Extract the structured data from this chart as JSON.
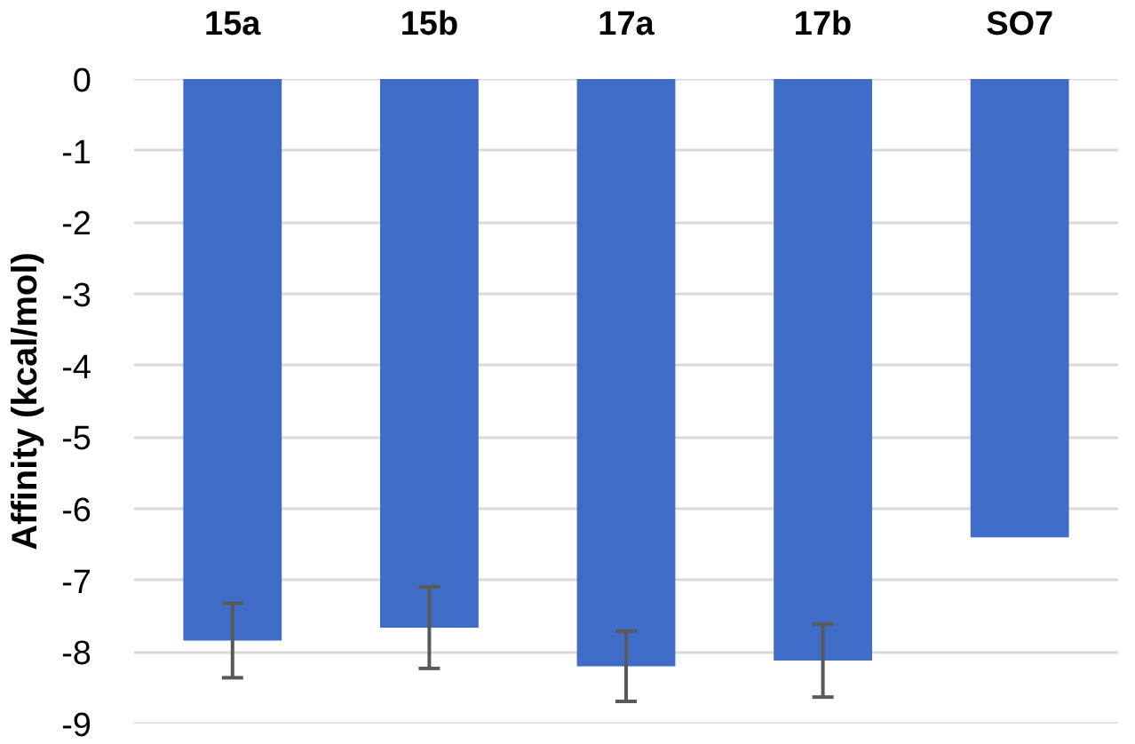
{
  "chart_data": {
    "type": "bar",
    "ylabel": "Affinity (kcal/mol)",
    "categories": [
      "15a",
      "15b",
      "17a",
      "17b",
      "SO7"
    ],
    "values": [
      -7.84,
      -7.66,
      -8.2,
      -8.12,
      -6.4
    ],
    "errors": [
      0.52,
      0.57,
      0.49,
      0.51,
      null
    ],
    "color": "#3f6cc6",
    "ylim": [
      -9,
      0
    ],
    "yticks": [
      0,
      -1,
      -2,
      -3,
      -4,
      -5,
      -6,
      -7,
      -8,
      -9
    ],
    "grid": "y"
  }
}
